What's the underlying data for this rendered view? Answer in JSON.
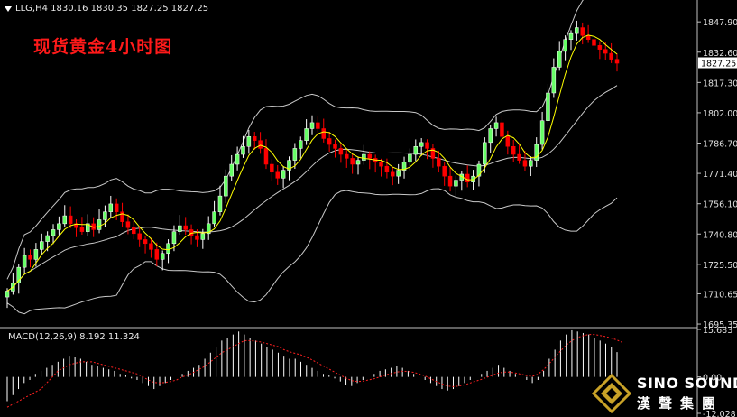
{
  "header": {
    "symbol": "LLG,H4",
    "ohlc": "1830.16 1830.35 1827.25 1827.25"
  },
  "title": "现货黄金4小时图",
  "price_axis": {
    "ticks": [
      "1847.90",
      "1832.60",
      "1817.30",
      "1802.00",
      "1786.70",
      "1771.40",
      "1756.10",
      "1740.80",
      "1725.50",
      "1710.65",
      "1695.35"
    ],
    "current_price_label": "1827.25"
  },
  "macd": {
    "label": "MACD(12,26,9) 8.192 11.324",
    "ticks": [
      "15.683",
      "0.00",
      "-12.028"
    ]
  },
  "logo": {
    "brand": "SINO SOUND",
    "chinese": "漢聲集團"
  },
  "colors": {
    "bull": "#ffffff",
    "bear": "#ff0000",
    "bull_body": "#66ff66",
    "bollinger": "#c8c8c8",
    "ma": "#ffff00",
    "macd_hist": "#ffffff",
    "macd_signal": "#ff2020",
    "background": "#000000"
  },
  "chart_data": [
    {
      "type": "candlestick",
      "symbol": "LLG",
      "timeframe": "H4",
      "ylim": [
        1695.35,
        1860
      ],
      "indicators": [
        "Bollinger Bands (20)",
        "Moving Average"
      ],
      "close_series": [
        1712,
        1716,
        1724,
        1730,
        1728,
        1733,
        1737,
        1740,
        1743,
        1746,
        1750,
        1746,
        1744,
        1742,
        1746,
        1743,
        1748,
        1752,
        1756,
        1752,
        1747,
        1744,
        1741,
        1738,
        1736,
        1733,
        1728,
        1731,
        1736,
        1742,
        1745,
        1743,
        1740,
        1738,
        1741,
        1746,
        1752,
        1760,
        1770,
        1776,
        1781,
        1785,
        1790,
        1788,
        1784,
        1776,
        1772,
        1769,
        1773,
        1778,
        1784,
        1788,
        1794,
        1797,
        1794,
        1789,
        1786,
        1784,
        1781,
        1779,
        1776,
        1778,
        1781,
        1779,
        1777,
        1775,
        1772,
        1770,
        1773,
        1777,
        1781,
        1785,
        1787,
        1784,
        1779,
        1775,
        1770,
        1765,
        1768,
        1771,
        1767,
        1770,
        1776,
        1787,
        1794,
        1797,
        1790,
        1785,
        1781,
        1778,
        1775,
        1778,
        1786,
        1798,
        1812,
        1825,
        1833,
        1839,
        1842,
        1845,
        1841,
        1839,
        1836,
        1834,
        1832,
        1829,
        1827
      ]
    },
    {
      "type": "bar",
      "name": "MACD(12,26,9)",
      "values": [
        -8,
        -6,
        -4,
        -2,
        -1,
        1,
        2,
        3,
        4,
        5,
        6,
        7,
        6.5,
        6,
        5,
        4,
        3.5,
        3,
        2.5,
        2,
        1,
        0.5,
        -0.5,
        -1,
        -2,
        -3,
        -4,
        -3,
        -2,
        -1,
        0,
        1,
        2,
        3,
        4,
        6,
        8,
        10,
        12,
        13,
        14,
        15,
        14,
        13,
        12,
        11,
        10,
        9,
        8,
        7,
        6,
        6,
        5,
        4,
        3,
        2,
        1,
        0.5,
        -0.5,
        -1.5,
        -2.5,
        -3,
        -2,
        -1,
        0,
        1,
        2,
        2.5,
        3,
        3.5,
        3,
        2,
        1,
        0,
        -1,
        -2,
        -3,
        -4,
        -4.5,
        -4,
        -3,
        -2,
        -1,
        0,
        1,
        2,
        3,
        4,
        3,
        2,
        1,
        0,
        -1,
        -2,
        -1,
        2,
        6,
        9,
        12,
        14,
        15.4,
        15,
        14.5,
        14,
        13,
        12,
        11,
        10,
        8.192
      ],
      "signal": [
        -10,
        -9,
        -8,
        -7,
        -6,
        -5,
        -4,
        -2,
        0,
        2,
        3,
        4,
        4.5,
        5,
        5,
        5,
        4.5,
        4,
        3.5,
        3,
        2.5,
        2,
        1.5,
        1,
        0,
        -1,
        -1.8,
        -2,
        -1.8,
        -1.5,
        -1,
        0,
        0.6,
        1.5,
        2.5,
        3.5,
        5,
        6.5,
        8,
        9,
        10,
        11,
        12,
        12,
        11.8,
        11.5,
        11,
        10.5,
        10,
        9,
        8.3,
        7.8,
        7.3,
        6.5,
        5.6,
        4.6,
        3.6,
        2.6,
        1.6,
        0.6,
        -0.4,
        -1.2,
        -1.5,
        -1.4,
        -1,
        -0.6,
        0,
        0.6,
        1.1,
        1.6,
        1.9,
        1.8,
        1.5,
        1,
        0.3,
        -0.6,
        -1.5,
        -2.3,
        -3,
        -3.2,
        -3,
        -2.6,
        -2,
        -1.4,
        -0.8,
        -0.1,
        0.6,
        1.3,
        1.6,
        1.6,
        1.3,
        0.9,
        0.4,
        0.2,
        0.9,
        2.4,
        4.4,
        6.5,
        8.6,
        10.5,
        12,
        13,
        13.6,
        14,
        14,
        13.7,
        13.3,
        12.8,
        12.2,
        11.324
      ],
      "ylim": [
        -12.028,
        15.683
      ]
    }
  ]
}
